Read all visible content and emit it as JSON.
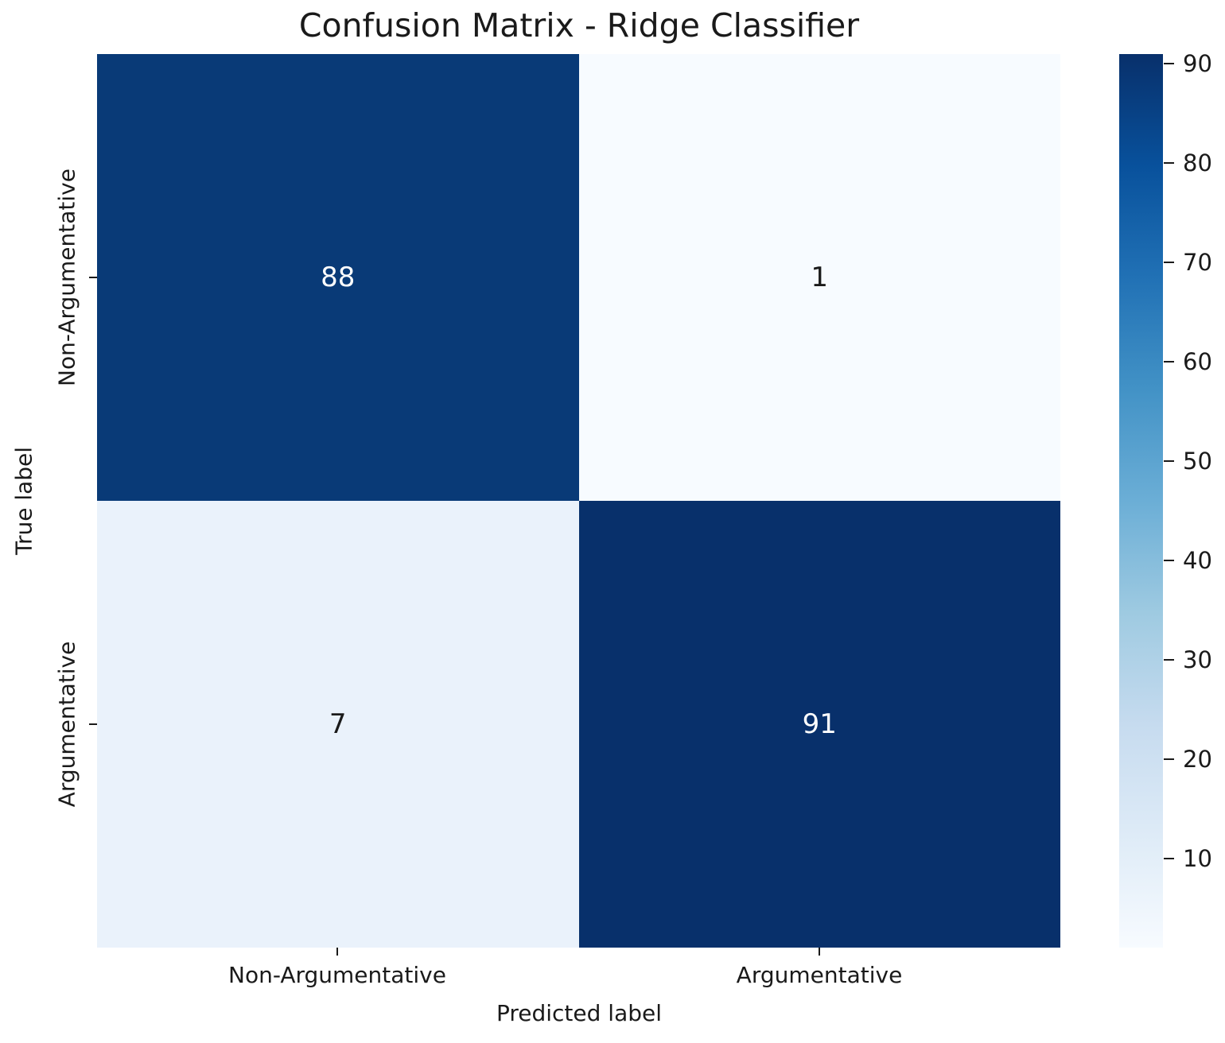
{
  "chart_data": {
    "type": "heatmap",
    "title": "Confusion Matrix - Ridge Classifier",
    "xlabel": "Predicted label",
    "ylabel": "True label",
    "x_categories": [
      "Non-Argumentative",
      "Argumentative"
    ],
    "y_categories": [
      "Non-Argumentative",
      "Argumentative"
    ],
    "values": [
      [
        88,
        1
      ],
      [
        7,
        91
      ]
    ],
    "vmin": 1,
    "vmax": 91,
    "colormap": "Blues",
    "legend_position": "right-colorbar",
    "grid": false,
    "colorbar_ticks": [
      90,
      80,
      70,
      60,
      50,
      40,
      30,
      20,
      10
    ],
    "cell_colors": [
      [
        "#093a77",
        "#f7fbff"
      ],
      [
        "#eaf2fb",
        "#08306b"
      ]
    ],
    "cell_text_colors": [
      [
        "#ffffff",
        "#1a1a1a"
      ],
      [
        "#1a1a1a",
        "#ffffff"
      ]
    ],
    "colorbar_gradient": [
      "#08306b",
      "#08519c",
      "#2171b5",
      "#4292c6",
      "#6baed6",
      "#9ecae1",
      "#c6dbef",
      "#deebf7",
      "#f7fbff"
    ],
    "text_color": "#1a1a1a"
  }
}
